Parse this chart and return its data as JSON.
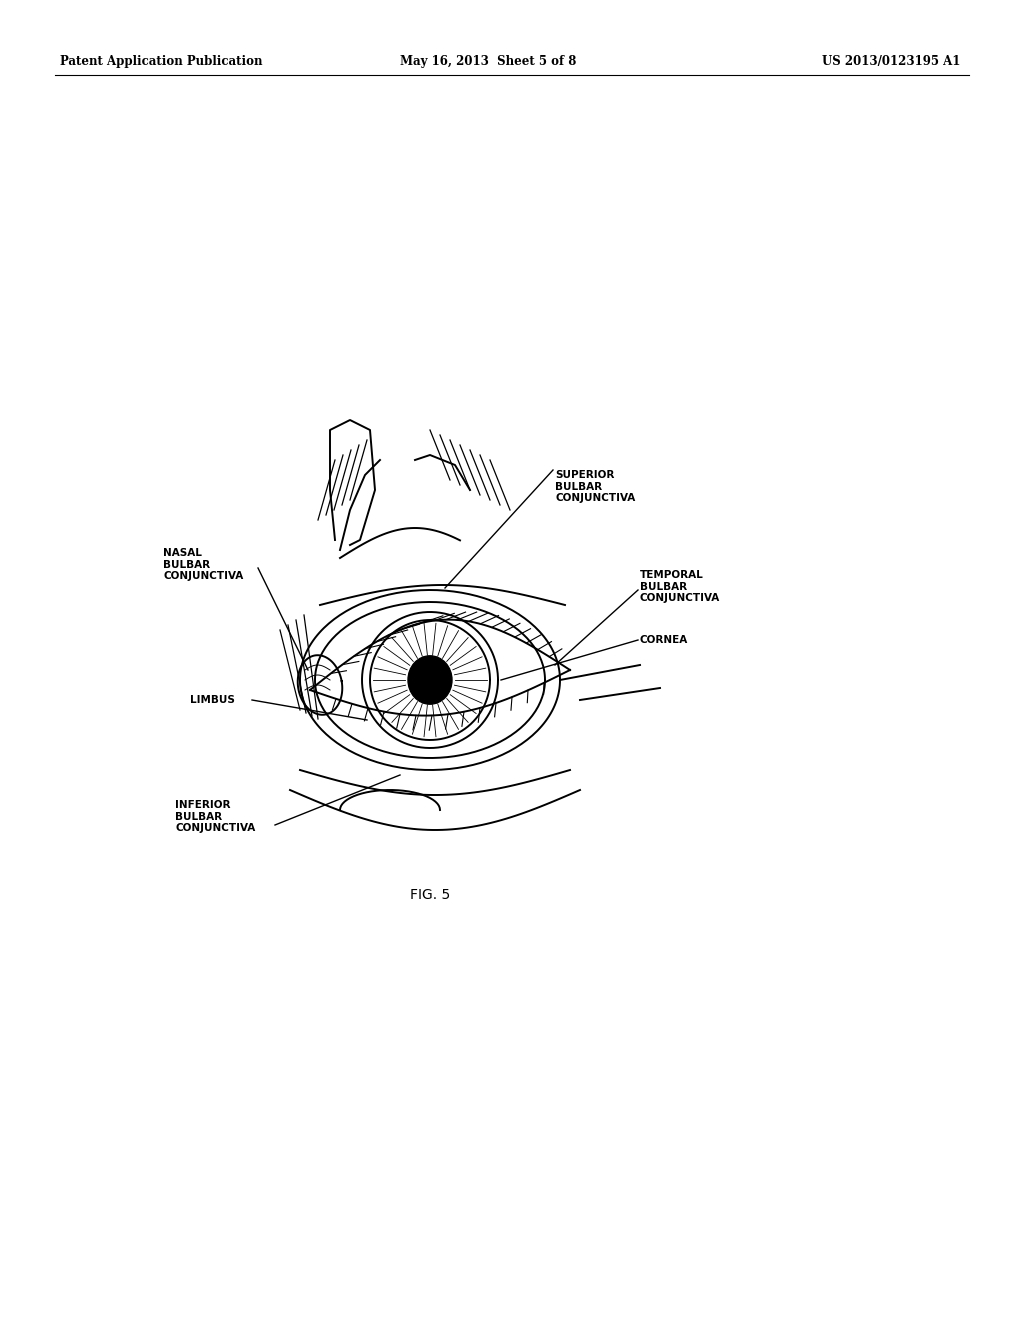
{
  "background_color": "#ffffff",
  "header_left": "Patent Application Publication",
  "header_mid": "May 16, 2013  Sheet 5 of 8",
  "header_right": "US 2013/0123195 A1",
  "caption": "FIG. 5",
  "labels": {
    "superior": "SUPERIOR\nBULBAR\nCONJUNCTIVA",
    "nasal": "NASAL\nBULBAR\nCONJUNCTIVA",
    "temporal": "TEMPORAL\nBULBAR\nCONJUNCTIVA",
    "cornea": "CORNEA",
    "limbus": "LIMBUS",
    "inferior": "INFERIOR\nBULBAR\nCONJUNCTIVA"
  },
  "line_color": "#000000",
  "text_color": "#000000",
  "font_size_header": 8.5,
  "font_size_label": 7.5,
  "font_size_caption": 10
}
